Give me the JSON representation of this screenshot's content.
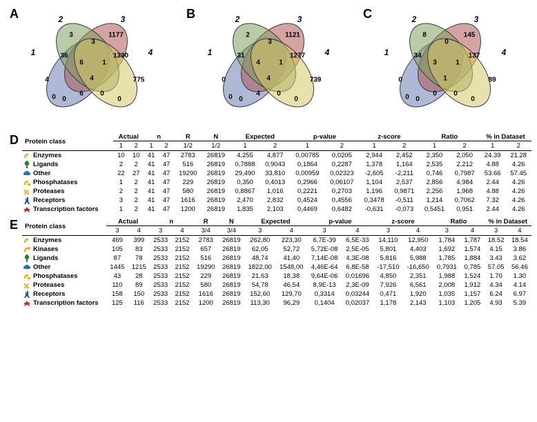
{
  "venn": {
    "colors": {
      "set1": "#6b80b5",
      "set2": "#b05a5a",
      "set3": "#7fa060",
      "set4": "#d6c86a",
      "stroke": "#3a3a3a",
      "opacity": 0.55
    },
    "panels": [
      {
        "label": "A",
        "set_labels": [
          "1",
          "2",
          "3",
          "4"
        ],
        "values": {
          "only1": "4",
          "only2": "3",
          "only3": "1177",
          "only4": "775",
          "12": "36",
          "13": "0",
          "14": "0",
          "23": "3",
          "24": "0",
          "34": "1330",
          "123": "6",
          "124": "6",
          "134": "0",
          "234": "1",
          "1234": "4"
        }
      },
      {
        "label": "B",
        "set_labels": [
          "1",
          "2",
          "3",
          "4"
        ],
        "values": {
          "only1": "0",
          "only2": "2",
          "only3": "1121",
          "only4": "739",
          "12": "31",
          "13": "0",
          "14": "0",
          "23": "3",
          "24": "0",
          "34": "1277",
          "123": "4",
          "124": "4",
          "134": "0",
          "234": "1",
          "1234": "4"
        }
      },
      {
        "label": "C",
        "set_labels": [
          "1",
          "2",
          "3",
          "4"
        ],
        "values": {
          "only1": "0",
          "only2": "8",
          "only3": "145",
          "only4": "89",
          "12": "34",
          "13": "0",
          "14": "0",
          "23": "0",
          "24": "0",
          "34": "137",
          "123": "3",
          "124": "0",
          "134": "0",
          "234": "1",
          "1234": "1"
        }
      }
    ]
  },
  "icons": {
    "enzymes": {
      "color": "#f5a623",
      "shape": "enzyme"
    },
    "kinases": {
      "color": "#f5a623",
      "shape": "kinase"
    },
    "ligands": {
      "color": "#2e7d32",
      "shape": "ligand"
    },
    "other": {
      "color": "#2f6fb0",
      "shape": "cloud"
    },
    "phos": {
      "color": "#f5a623",
      "shape": "phos"
    },
    "prot": {
      "color": "#f5a623",
      "shape": "proteases"
    },
    "recept": {
      "color": "#1e4fbf",
      "shape": "receptor"
    },
    "tf": {
      "color": "#c62828",
      "shape": "tf"
    }
  },
  "tableD": {
    "label": "D",
    "group_headers": [
      "Actual",
      "n",
      "R",
      "N",
      "Expected",
      "p-value",
      "z-score",
      "Ratio",
      "% in Dataset"
    ],
    "sub_cols_single": [
      "R",
      "N"
    ],
    "col_idx": [
      "1",
      "2"
    ],
    "rows": [
      {
        "icon": "enzymes",
        "name": "Enzymes",
        "vals": [
          "10",
          "10",
          "41",
          "47",
          "2783",
          "26819",
          "4,255",
          "4,877",
          "0,00785",
          "0,0205",
          "2,944",
          "2,452",
          "2,350",
          "2,050",
          "24.39",
          "21.28"
        ]
      },
      {
        "icon": "ligands",
        "name": "Ligands",
        "vals": [
          "2",
          "2",
          "41",
          "47",
          "516",
          "26819",
          "0,7888",
          "0,9043",
          "0,1864",
          "0,2287",
          "1,378",
          "1,164",
          "2,535",
          "2,212",
          "4.88",
          "4.26"
        ]
      },
      {
        "icon": "other",
        "name": "Other",
        "vals": [
          "22",
          "27",
          "41",
          "47",
          "19290",
          "26819",
          "29,490",
          "33,810",
          "0,00959",
          "0,02323",
          "-2,605",
          "-2,211",
          "0,746",
          "0,7987",
          "53.66",
          "57.45"
        ]
      },
      {
        "icon": "phos",
        "name": "Phosphatases",
        "vals": [
          "1",
          "2",
          "41",
          "47",
          "229",
          "26819",
          "0,350",
          "0,4013",
          "0,2966",
          "0,06107",
          "1,104",
          "2,537",
          "2,856",
          "4,984",
          "2.44",
          "4.26"
        ]
      },
      {
        "icon": "prot",
        "name": "Proteases",
        "vals": [
          "2",
          "2",
          "41",
          "47",
          "580",
          "26819",
          "0,8867",
          "1,016",
          "0,2221",
          "0,2703",
          "1,196",
          "0,9871",
          "2,256",
          "1,968",
          "4.88",
          "4.26"
        ]
      },
      {
        "icon": "recept",
        "name": "Receptors",
        "vals": [
          "3",
          "2",
          "41",
          "47",
          "1616",
          "26819",
          "2,470",
          "2,832",
          "0,4524",
          "0,4556",
          "0,3478",
          "-0,511",
          "1,214",
          "0,7062",
          "7.32",
          "4.26"
        ]
      },
      {
        "icon": "tf",
        "name": "Transcription factors",
        "vals": [
          "1",
          "2",
          "41",
          "47",
          "1200",
          "26819",
          "1,835",
          "2,103",
          "0,4469",
          "0,6482",
          "-0,631",
          "-0,073",
          "0,5451",
          "0,951",
          "2.44",
          "4.26"
        ]
      }
    ]
  },
  "tableE": {
    "label": "E",
    "group_headers": [
      "Actual",
      "n",
      "R",
      "N",
      "Expected",
      "p-value",
      "z-score",
      "Ratio",
      "% in Dataset"
    ],
    "col_idx": [
      "3",
      "4"
    ],
    "rows": [
      {
        "icon": "enzymes",
        "name": "Enzymes",
        "vals": [
          "469",
          "399",
          "2533",
          "2152",
          "2783",
          "26819",
          "262,80",
          "223,30",
          "6,7E-39",
          "6,5E-33",
          "14,110",
          "12,950",
          "1,784",
          "1,787",
          "18.52",
          "18.54"
        ]
      },
      {
        "icon": "kinases",
        "name": "Kinases",
        "vals": [
          "105",
          "83",
          "2533",
          "2152",
          "657",
          "26819",
          "62,05",
          "52,72",
          "5,72E-08",
          "2,5E-05",
          "5,801",
          "4,403",
          "1,692",
          "1,574",
          "4.15",
          "3.86"
        ]
      },
      {
        "icon": "ligands",
        "name": "Ligands",
        "vals": [
          "87",
          "78",
          "2533",
          "2152",
          "516",
          "26819",
          "48,74",
          "41,40",
          "7,14E-08",
          "4,3E-08",
          "5,816",
          "5,988",
          "1,785",
          "1,884",
          "3.43",
          "3.62"
        ]
      },
      {
        "icon": "other",
        "name": "Other",
        "vals": [
          "1445",
          "1215",
          "2533",
          "2152",
          "19290",
          "26819",
          "1822,00",
          "1548,00",
          "4,46E-64",
          "6,8E-58",
          "-17,510",
          "-16,650",
          "0,7931",
          "0,785",
          "57.05",
          "56.46"
        ]
      },
      {
        "icon": "phos",
        "name": "Phosphatases",
        "vals": [
          "43",
          "28",
          "2533",
          "2152",
          "229",
          "26819",
          "21,63",
          "18,38",
          "9,64E-06",
          "0,01696",
          "4,850",
          "2,351",
          "1,988",
          "1,524",
          "1.70",
          "1.30"
        ]
      },
      {
        "icon": "prot",
        "name": "Proteases",
        "vals": [
          "110",
          "89",
          "2533",
          "2152",
          "580",
          "26819",
          "54,78",
          "46,54",
          "8,9E-13",
          "2,3E-09",
          "7,926",
          "6,561",
          "2,008",
          "1,912",
          "4.34",
          "4.14"
        ]
      },
      {
        "icon": "recept",
        "name": "Receptors",
        "vals": [
          "158",
          "150",
          "2533",
          "2152",
          "1616",
          "26819",
          "152,60",
          "129,70",
          "0,3314",
          "0,03244",
          "0,471",
          "1,920",
          "1,035",
          "1,157",
          "6.24",
          "6.97"
        ]
      },
      {
        "icon": "tf",
        "name": "Transcription factors",
        "vals": [
          "125",
          "116",
          "2533",
          "2152",
          "1200",
          "26819",
          "113,30",
          "96,29",
          "0,1404",
          "0,02037",
          "1,178",
          "2,143",
          "1,103",
          "1,205",
          "4.93",
          "5.39"
        ]
      }
    ]
  }
}
